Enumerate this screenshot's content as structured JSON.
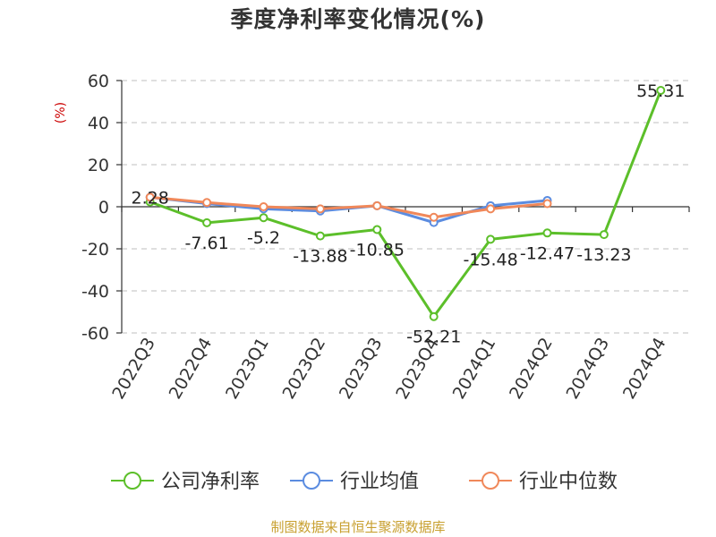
{
  "title": "季度净利率变化情况(%)",
  "source": "制图数据来自恒生聚源数据库",
  "chart_data": {
    "type": "line",
    "title": "季度净利率变化情况(%)",
    "ylabel": "(%)",
    "xlabel": "",
    "ylim": [
      -60,
      60
    ],
    "yticks": [
      60,
      40,
      20,
      0,
      -20,
      -40,
      -60
    ],
    "grid": true,
    "legend_position": "bottom",
    "categories": [
      "2022Q3",
      "2022Q4",
      "2023Q1",
      "2023Q2",
      "2023Q3",
      "2023Q4",
      "2024Q1",
      "2024Q2",
      "2024Q3",
      "2024Q4"
    ],
    "series": [
      {
        "name": "公司净利率",
        "color": "#5cbf2a",
        "values": [
          2.28,
          -7.61,
          -5.2,
          -13.88,
          -10.85,
          -52.21,
          -15.48,
          -12.47,
          -13.23,
          55.31
        ],
        "labels": [
          "2.28",
          "-7.61",
          "-5.2",
          "-13.88",
          "-10.85",
          "-52.21",
          "-15.48",
          "-12.47",
          "-13.23",
          "55.31"
        ],
        "show_labels": true
      },
      {
        "name": "行业均值",
        "color": "#5b8ce0",
        "values": [
          4.5,
          1.5,
          -1.0,
          -2.0,
          0.5,
          -7.5,
          0.5,
          3.0,
          null,
          null
        ],
        "show_labels": false
      },
      {
        "name": "行业中位数",
        "color": "#f0885a",
        "values": [
          4.5,
          2.0,
          0.0,
          -1.0,
          0.5,
          -5.0,
          -1.0,
          1.5,
          null,
          null
        ],
        "show_labels": false
      }
    ]
  }
}
